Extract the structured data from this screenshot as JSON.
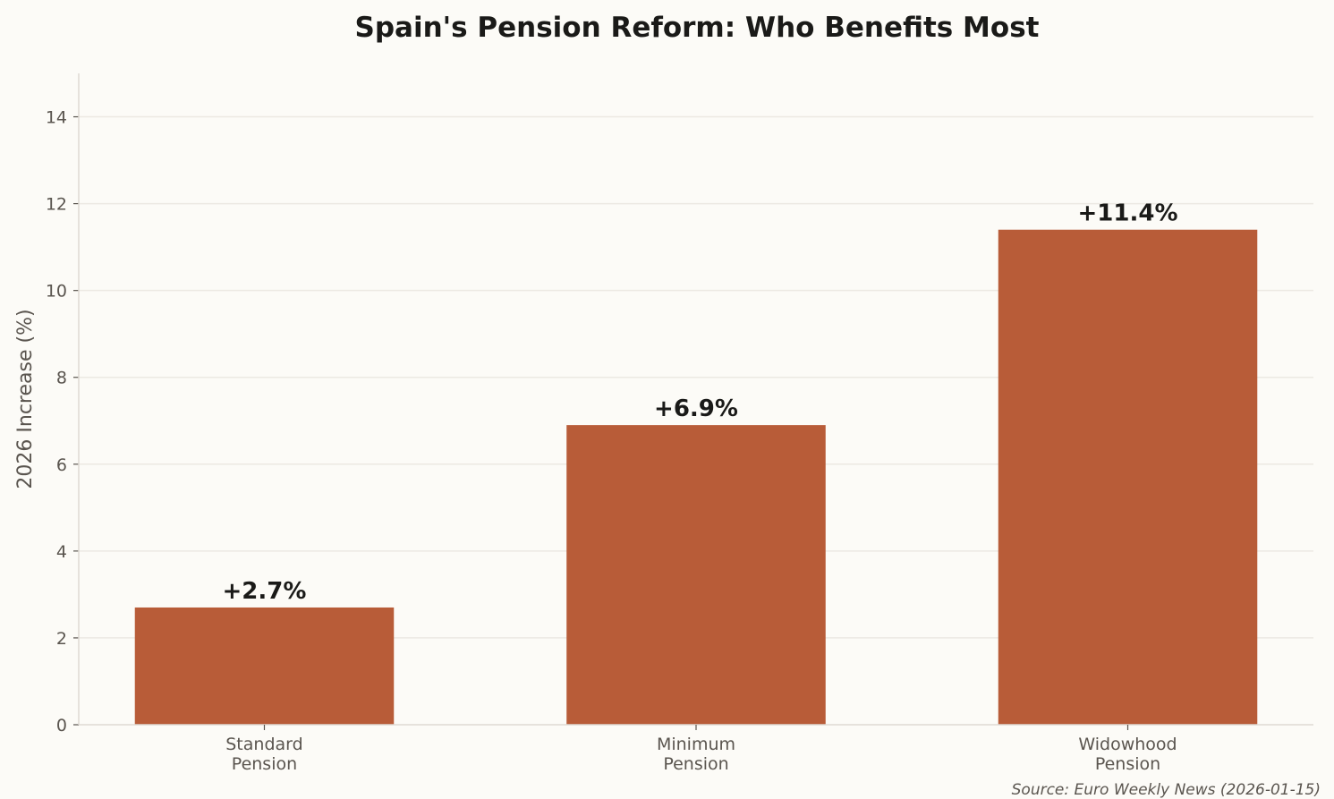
{
  "chart_data": {
    "type": "bar",
    "title": "Spain's Pension Reform: Who Benefits Most",
    "xlabel": "",
    "ylabel": "2026 Increase (%)",
    "categories": [
      [
        "Standard",
        "Pension"
      ],
      [
        "Minimum",
        "Pension"
      ],
      [
        "Widowhood",
        "Pension"
      ]
    ],
    "values": [
      2.7,
      6.9,
      11.4
    ],
    "data_labels": [
      "+2.7%",
      "+6.9%",
      "+11.4%"
    ],
    "ylim": [
      0,
      15
    ],
    "yticks": [
      0,
      2,
      4,
      6,
      8,
      10,
      12,
      14
    ],
    "grid": "horizontal",
    "bar_color": "#b85c38",
    "background": "#fcfbf7",
    "source": "Source: Euro Weekly News (2026-01-15)"
  }
}
